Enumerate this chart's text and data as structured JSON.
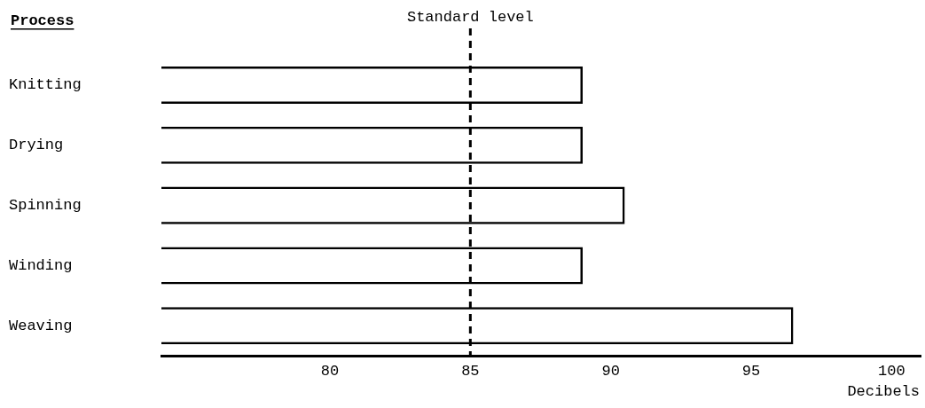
{
  "chart_data": {
    "type": "bar",
    "orientation": "horizontal",
    "ylabel": "Process",
    "xlabel": "Decibels",
    "categories": [
      "Knitting",
      "Drying",
      "Spinning",
      "Winding",
      "Weaving"
    ],
    "values": [
      89,
      89,
      90.5,
      89,
      96.5
    ],
    "color": "#000000",
    "xlim": [
      74,
      101
    ],
    "xticks": [
      80,
      85,
      90,
      95,
      100
    ],
    "grid": false,
    "legend": false,
    "ref_lines": [
      {
        "axis": "x",
        "value": 85,
        "label": "Standard level",
        "line_style": "dashed",
        "color": "#000000"
      }
    ]
  }
}
